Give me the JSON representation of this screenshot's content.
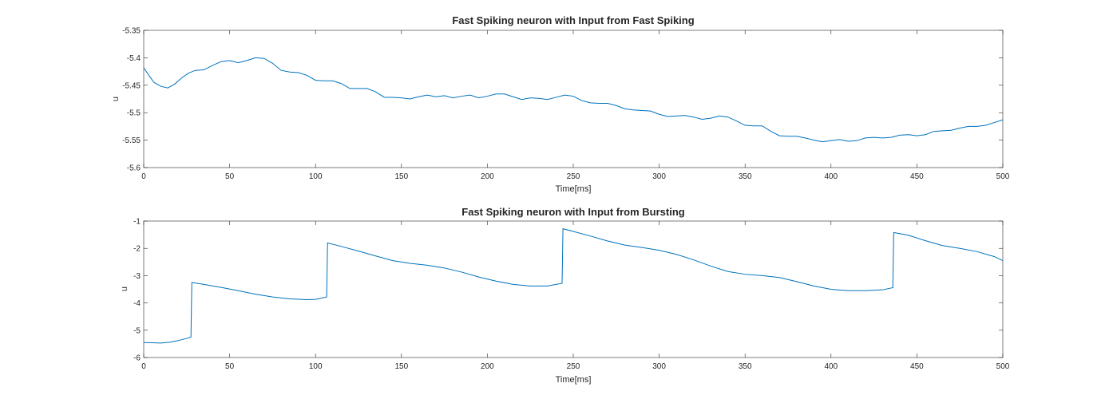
{
  "line_color": "#0072BD",
  "axis_color": "#262626",
  "chart_data": [
    {
      "type": "line",
      "title": "Fast Spiking neuron with Input from Fast Spiking",
      "xlabel": "Time[ms]",
      "ylabel": "u",
      "xlim": [
        0,
        500
      ],
      "ylim": [
        -5.6,
        -5.35
      ],
      "xticks": [
        0,
        50,
        100,
        150,
        200,
        250,
        300,
        350,
        400,
        450,
        500
      ],
      "yticks": [
        -5.35,
        -5.4,
        -5.45,
        -5.5,
        -5.55,
        -5.6
      ],
      "xtick_labels": [
        "0",
        "50",
        "100",
        "150",
        "200",
        "250",
        "300",
        "350",
        "400",
        "450",
        "500"
      ],
      "ytick_labels": [
        "-5.35",
        "-5.4",
        "-5.45",
        "-5.5",
        "-5.55",
        "-5.6"
      ],
      "grid": false,
      "series": [
        {
          "x": [
            0,
            3,
            6,
            10,
            14,
            18,
            22,
            26,
            30,
            35,
            40,
            45,
            50,
            55,
            60,
            65,
            70,
            75,
            80,
            85,
            90,
            95,
            100,
            105,
            110,
            115,
            120,
            125,
            130,
            135,
            140,
            145,
            150,
            155,
            160,
            165,
            170,
            175,
            180,
            185,
            190,
            195,
            200,
            205,
            210,
            215,
            220,
            225,
            230,
            235,
            240,
            245,
            250,
            255,
            260,
            265,
            270,
            275,
            280,
            285,
            290,
            295,
            300,
            305,
            310,
            315,
            320,
            325,
            330,
            335,
            340,
            345,
            350,
            355,
            360,
            365,
            370,
            375,
            380,
            385,
            390,
            395,
            400,
            405,
            410,
            415,
            420,
            425,
            430,
            435,
            440,
            445,
            450,
            455,
            460,
            465,
            470,
            475,
            480,
            485,
            490,
            495,
            500
          ],
          "y": [
            -5.418,
            -5.432,
            -5.445,
            -5.452,
            -5.455,
            -5.448,
            -5.437,
            -5.428,
            -5.423,
            -5.422,
            -5.414,
            -5.407,
            -5.405,
            -5.409,
            -5.405,
            -5.4,
            -5.401,
            -5.41,
            -5.423,
            -5.426,
            -5.427,
            -5.432,
            -5.441,
            -5.442,
            -5.442,
            -5.447,
            -5.456,
            -5.456,
            -5.456,
            -5.462,
            -5.472,
            -5.472,
            -5.473,
            -5.475,
            -5.471,
            -5.468,
            -5.471,
            -5.469,
            -5.473,
            -5.47,
            -5.468,
            -5.473,
            -5.47,
            -5.466,
            -5.466,
            -5.471,
            -5.476,
            -5.473,
            -5.474,
            -5.476,
            -5.472,
            -5.468,
            -5.47,
            -5.478,
            -5.482,
            -5.483,
            -5.483,
            -5.487,
            -5.493,
            -5.495,
            -5.496,
            -5.497,
            -5.503,
            -5.507,
            -5.506,
            -5.505,
            -5.508,
            -5.512,
            -5.51,
            -5.506,
            -5.508,
            -5.515,
            -5.523,
            -5.524,
            -5.524,
            -5.534,
            -5.542,
            -5.543,
            -5.543,
            -5.546,
            -5.55,
            -5.553,
            -5.551,
            -5.549,
            -5.552,
            -5.551,
            -5.546,
            -5.545,
            -5.546,
            -5.545,
            -5.541,
            -5.54,
            -5.542,
            -5.54,
            -5.534,
            -5.533,
            -5.532,
            -5.528,
            -5.525,
            -5.525,
            -5.523,
            -5.518,
            -5.513
          ]
        }
      ]
    },
    {
      "type": "line",
      "title": "Fast Spiking neuron with Input from Bursting",
      "xlabel": "Time[ms]",
      "ylabel": "u",
      "xlim": [
        0,
        500
      ],
      "ylim": [
        -6,
        -1
      ],
      "xticks": [
        0,
        50,
        100,
        150,
        200,
        250,
        300,
        350,
        400,
        450,
        500
      ],
      "yticks": [
        -1,
        -2,
        -3,
        -4,
        -5,
        -6
      ],
      "xtick_labels": [
        "0",
        "50",
        "100",
        "150",
        "200",
        "250",
        "300",
        "350",
        "400",
        "450",
        "500"
      ],
      "ytick_labels": [
        "-1",
        "-2",
        "-3",
        "-4",
        "-5",
        "-6"
      ],
      "grid": false,
      "series": [
        {
          "x": [
            0,
            5,
            10,
            15,
            20,
            25,
            27.5,
            28,
            35,
            45,
            55,
            65,
            75,
            85,
            95,
            100,
            106.5,
            107,
            115,
            125,
            135,
            145,
            155,
            165,
            175,
            185,
            195,
            205,
            215,
            225,
            235,
            243.5,
            244,
            250,
            260,
            270,
            280,
            290,
            300,
            310,
            320,
            330,
            340,
            350,
            360,
            370,
            380,
            390,
            400,
            410,
            420,
            430,
            436,
            436.5,
            445,
            455,
            465,
            475,
            485,
            495,
            500
          ],
          "y": [
            -5.45,
            -5.46,
            -5.47,
            -5.44,
            -5.38,
            -5.3,
            -5.25,
            -3.25,
            -3.32,
            -3.43,
            -3.55,
            -3.68,
            -3.78,
            -3.85,
            -3.88,
            -3.87,
            -3.78,
            -1.8,
            -1.93,
            -2.1,
            -2.28,
            -2.45,
            -2.55,
            -2.62,
            -2.72,
            -2.87,
            -3.05,
            -3.2,
            -3.32,
            -3.38,
            -3.38,
            -3.28,
            -1.28,
            -1.38,
            -1.55,
            -1.73,
            -1.88,
            -1.97,
            -2.07,
            -2.22,
            -2.42,
            -2.65,
            -2.85,
            -2.95,
            -3.0,
            -3.07,
            -3.22,
            -3.38,
            -3.5,
            -3.55,
            -3.55,
            -3.52,
            -3.44,
            -1.42,
            -1.52,
            -1.72,
            -1.9,
            -2.0,
            -2.12,
            -2.3,
            -2.45
          ]
        }
      ]
    }
  ]
}
